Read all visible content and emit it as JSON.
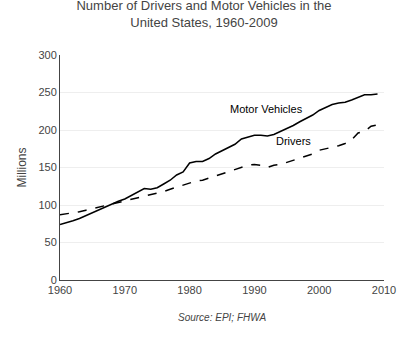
{
  "chart_data": {
    "type": "line",
    "title": "Number of Drivers and Motor Vehicles in the\nUnited States, 1960-2009",
    "y_label": "Millions",
    "x": [
      1960,
      1961,
      1962,
      1963,
      1964,
      1965,
      1966,
      1967,
      1968,
      1969,
      1970,
      1971,
      1972,
      1973,
      1974,
      1975,
      1976,
      1977,
      1978,
      1979,
      1980,
      1981,
      1982,
      1983,
      1984,
      1985,
      1986,
      1987,
      1988,
      1989,
      1990,
      1991,
      1992,
      1993,
      1994,
      1995,
      1996,
      1997,
      1998,
      1999,
      2000,
      2001,
      2002,
      2003,
      2004,
      2005,
      2006,
      2007,
      2008,
      2009
    ],
    "series": [
      {
        "name": "Motor Vehicles",
        "color": "#000000",
        "line_style": "solid",
        "values": [
          74,
          76,
          79,
          82,
          86,
          90,
          94,
          97,
          101,
          105,
          108,
          113,
          118,
          122,
          121,
          123,
          128,
          133,
          140,
          144,
          156,
          158,
          158,
          162,
          168,
          172,
          176,
          181,
          188,
          190,
          193,
          193,
          192,
          194,
          198,
          201,
          206,
          211,
          215,
          220,
          226,
          230,
          234,
          236,
          237,
          240,
          244,
          247,
          247,
          248
        ]
      },
      {
        "name": "Drivers",
        "color": "#000000",
        "line_style": "dashed",
        "values": [
          87,
          88,
          89,
          91,
          93,
          95,
          97,
          99,
          101,
          103,
          105,
          107,
          110,
          112,
          114,
          116,
          118,
          121,
          124,
          127,
          130,
          132,
          133,
          136,
          139,
          141,
          144,
          148,
          151,
          153,
          154,
          153,
          150,
          153,
          154,
          157,
          159,
          163,
          166,
          168,
          173,
          175,
          176,
          179,
          182,
          187,
          196,
          198,
          205,
          207
        ]
      }
    ],
    "annotations": [
      {
        "text": "Motor Vehicles",
        "x": 1986,
        "y": 218
      },
      {
        "text": "Drivers",
        "x": 1993,
        "y": 175
      },
      {
        "text": "Source: EPI; FHWA"
      }
    ],
    "xlim": [
      1960,
      2010
    ],
    "ylim": [
      0,
      300
    ],
    "xticks": [
      1960,
      1970,
      1980,
      1990,
      2000,
      2010
    ],
    "yticks": [
      0,
      50,
      100,
      150,
      200,
      250,
      300
    ],
    "grid": "y"
  }
}
